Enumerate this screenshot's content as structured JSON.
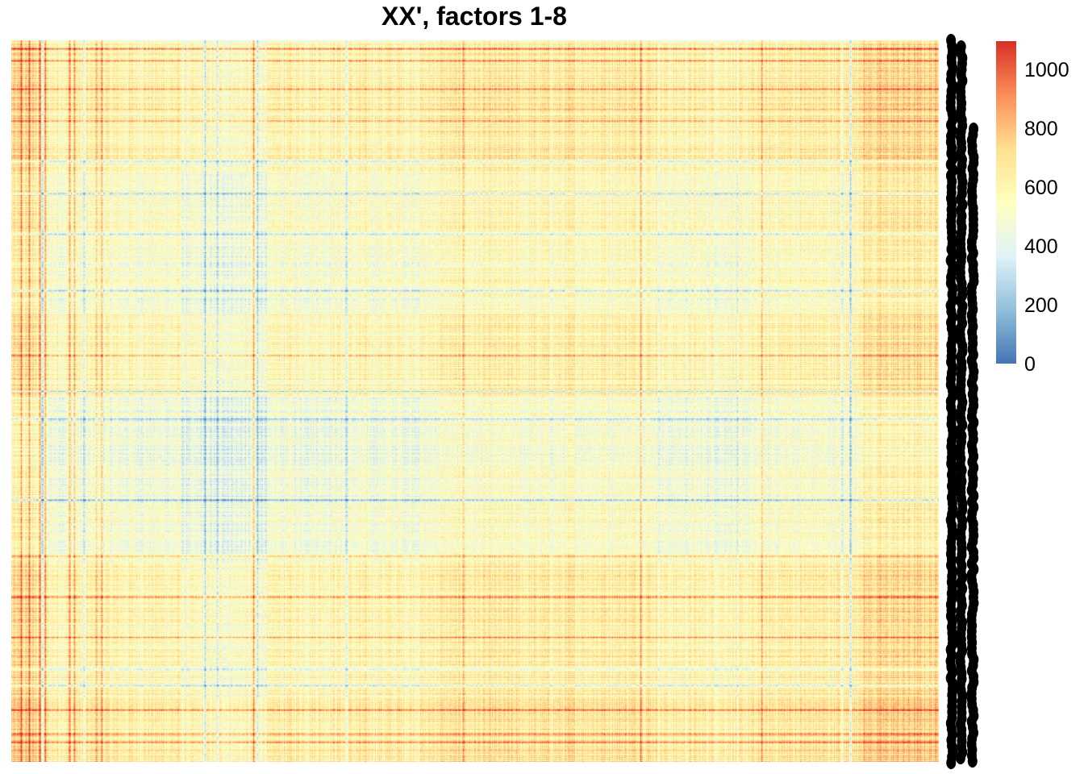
{
  "chart_data": {
    "type": "heatmap",
    "title": "XX', factors 1-8",
    "xlabel": "",
    "ylabel": "",
    "value_range": [
      0,
      1100
    ],
    "grid": false,
    "legend": {
      "placement": "right",
      "ticks": [
        "0",
        "200",
        "400",
        "600",
        "800",
        "1000"
      ],
      "tick_values": [
        0,
        200,
        400,
        600,
        800,
        1000
      ],
      "palette": [
        "#4575b4",
        "#91bfdb",
        "#e0f3f8",
        "#ffffbf",
        "#fee090",
        "#fc8d59",
        "#d73027"
      ]
    },
    "row_labels": "dense unreadable row labels rendered as black overlapping glyphs",
    "column_clusters": [
      {
        "cols": [
          0,
          36
        ],
        "mean": 680
      },
      {
        "cols": [
          36,
          210
        ],
        "mean": 560
      },
      {
        "cols": [
          210,
          325
        ],
        "mean": 490
      },
      {
        "cols": [
          325,
          520
        ],
        "mean": 560
      },
      {
        "cols": [
          520,
          690
        ],
        "mean": 600
      },
      {
        "cols": [
          690,
          800
        ],
        "mean": 620
      },
      {
        "cols": [
          800,
          940
        ],
        "mean": 560
      },
      {
        "cols": [
          940,
          1050
        ],
        "mean": 600
      },
      {
        "cols": [
          1050,
          1150
        ],
        "mean": 700
      }
    ],
    "row_clusters": [
      {
        "rows": [
          0,
          150
        ],
        "mean": 640
      },
      {
        "rows": [
          150,
          240
        ],
        "mean": 560
      },
      {
        "rows": [
          240,
          340
        ],
        "mean": 520
      },
      {
        "rows": [
          340,
          440
        ],
        "mean": 610
      },
      {
        "rows": [
          440,
          570
        ],
        "mean": 480
      },
      {
        "rows": [
          570,
          650
        ],
        "mean": 520
      },
      {
        "rows": [
          650,
          820
        ],
        "mean": 620
      },
      {
        "rows": [
          820,
          895
        ],
        "mean": 680
      }
    ],
    "hot_columns": [
      12,
      22,
      35,
      42,
      72,
      78,
      105,
      112,
      300,
      560,
      620,
      780,
      930
    ],
    "cold_columns": [
      38,
      90,
      240,
      255,
      305,
      415,
      620,
      900,
      1030,
      1040
    ],
    "hot_rows": [
      10,
      25,
      60,
      85,
      100,
      390,
      640,
      690,
      740,
      830,
      860,
      870
    ],
    "cold_rows": [
      150,
      190,
      240,
      310,
      435,
      470,
      570,
      780,
      800
    ]
  }
}
